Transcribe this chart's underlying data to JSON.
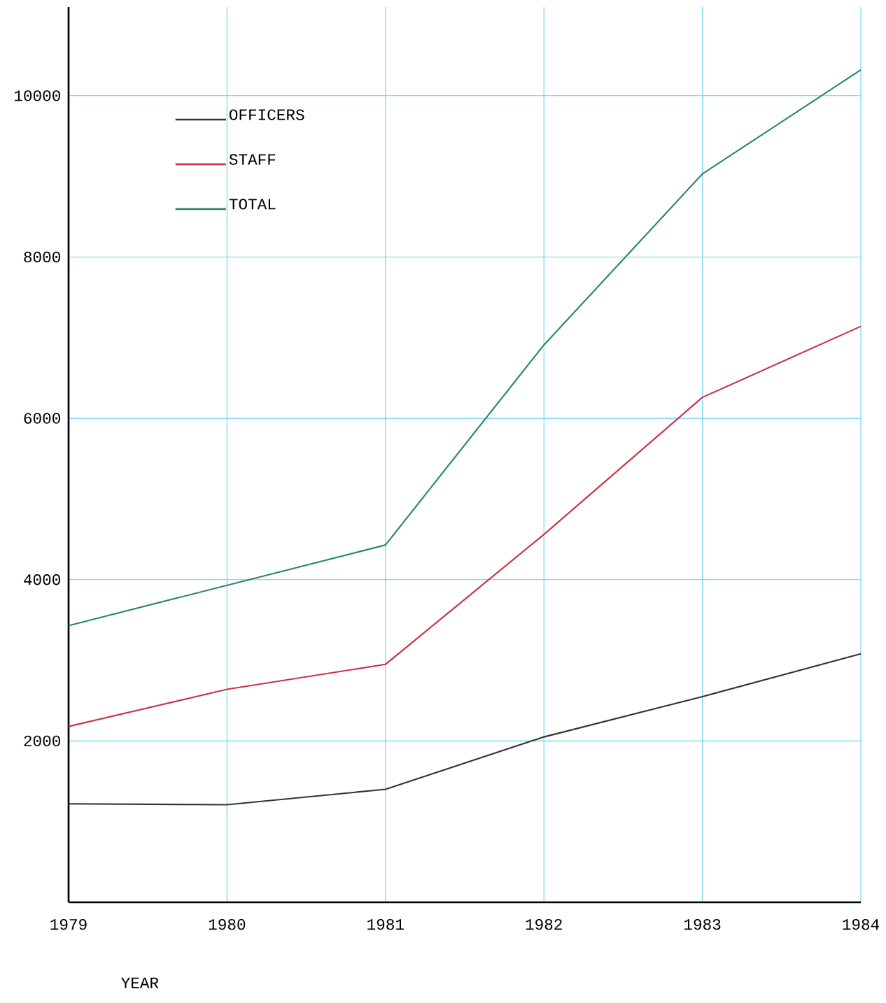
{
  "chart_data": {
    "type": "line",
    "xlabel": "YEAR",
    "x": [
      1979,
      1980,
      1981,
      1982,
      1983,
      1984
    ],
    "series": [
      {
        "name": "OFFICERS",
        "color": "#333333",
        "values": [
          1220,
          1210,
          1400,
          2050,
          2550,
          3080
        ]
      },
      {
        "name": "STAFF",
        "color": "#cc3344",
        "values": [
          2180,
          2640,
          2950,
          4560,
          6260,
          7140
        ]
      },
      {
        "name": "TOTAL",
        "color": "#2a8a5a",
        "values": [
          3430,
          3930,
          4430,
          6910,
          9030,
          10320
        ]
      }
    ],
    "xlim": [
      1979,
      1984
    ],
    "ylim": [
      0,
      11100
    ],
    "xticks": [
      1979,
      1980,
      1981,
      1982,
      1983,
      1984
    ],
    "yticks": [
      {
        "value": 0,
        "label": null
      },
      2000,
      4000,
      6000,
      8000,
      10000
    ],
    "grid": true,
    "legend": "top left",
    "marker": "none",
    "line_style": "solid"
  }
}
